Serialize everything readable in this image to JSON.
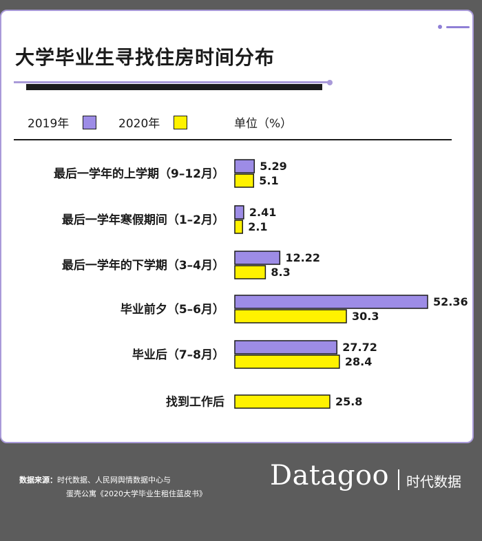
{
  "title": "大学毕业生寻找住房时间分布",
  "legend": [
    {
      "label": "2019年",
      "color": "#9d8ce6"
    },
    {
      "label": "2020年",
      "color": "#fff200"
    }
  ],
  "unit_label": "单位（%）",
  "source": {
    "label": "数据来源：",
    "line1": "时代数据、人民网舆情数据中心与",
    "line2": "蛋壳公寓《2020大学毕业生租住蓝皮书》"
  },
  "logo": {
    "wordmark": "Datagoo",
    "chinese": "时代数据"
  },
  "chart_data": {
    "type": "bar",
    "orientation": "horizontal",
    "title": "大学毕业生寻找住房时间分布",
    "unit": "%",
    "categories": [
      "最后一学年的上学期（9–12月）",
      "最后一学年寒假期间（1–2月）",
      "最后一学年的下学期（3–4月）",
      "毕业前夕（5–6月）",
      "毕业后（7–8月）",
      "找到工作后"
    ],
    "series": [
      {
        "name": "2019年",
        "color": "#9d8ce6",
        "values": [
          5.29,
          2.41,
          12.22,
          52.36,
          27.72,
          null
        ]
      },
      {
        "name": "2020年",
        "color": "#fff200",
        "values": [
          5.1,
          2.1,
          8.3,
          30.3,
          28.4,
          25.8
        ]
      }
    ],
    "data_labels": [
      [
        "5.29",
        "5.1"
      ],
      [
        "2.41",
        "2.1"
      ],
      [
        "12.22",
        "8.3"
      ],
      [
        "52.36",
        "30.3"
      ],
      [
        "27.72",
        "28.4"
      ],
      [
        null,
        "25.8"
      ]
    ],
    "xlim": [
      0,
      52.36
    ],
    "grid": false,
    "legend_position": "top-left"
  }
}
